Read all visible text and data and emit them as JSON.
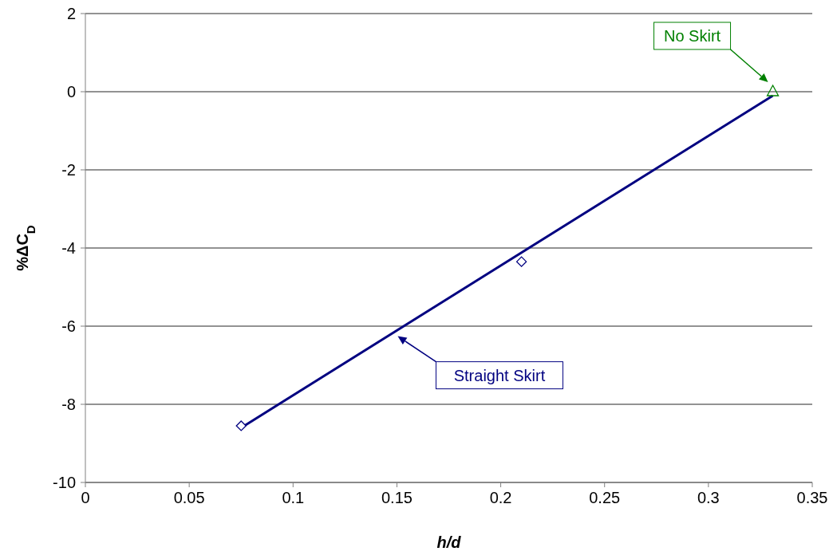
{
  "chart_data": {
    "type": "scatter",
    "xlabel": "h/d",
    "ylabel": "%ΔC$_{D}$",
    "xlim": [
      0,
      0.35
    ],
    "ylim": [
      -10,
      2
    ],
    "xticks": [
      0,
      0.05,
      0.1,
      0.15,
      0.2,
      0.25,
      0.3,
      0.35
    ],
    "yticks": [
      -10,
      -8,
      -6,
      -4,
      -2,
      0,
      2
    ],
    "grid": "y",
    "legend": false,
    "series": [
      {
        "marker": "diamond",
        "color": "#000080",
        "x": [
          0.075,
          0.21
        ],
        "values": [
          -8.55,
          -4.35
        ]
      },
      {
        "type": "line",
        "name": "Straight Skirt",
        "marker": "none",
        "line_style": "solid",
        "color": "#000080",
        "x": [
          0.075,
          0.331
        ],
        "values": [
          -8.6,
          -0.1
        ]
      },
      {
        "name": "No Skirt",
        "marker": "triangle",
        "color": "#008000",
        "x": [
          0.331
        ],
        "values": [
          0
        ]
      }
    ]
  }
}
